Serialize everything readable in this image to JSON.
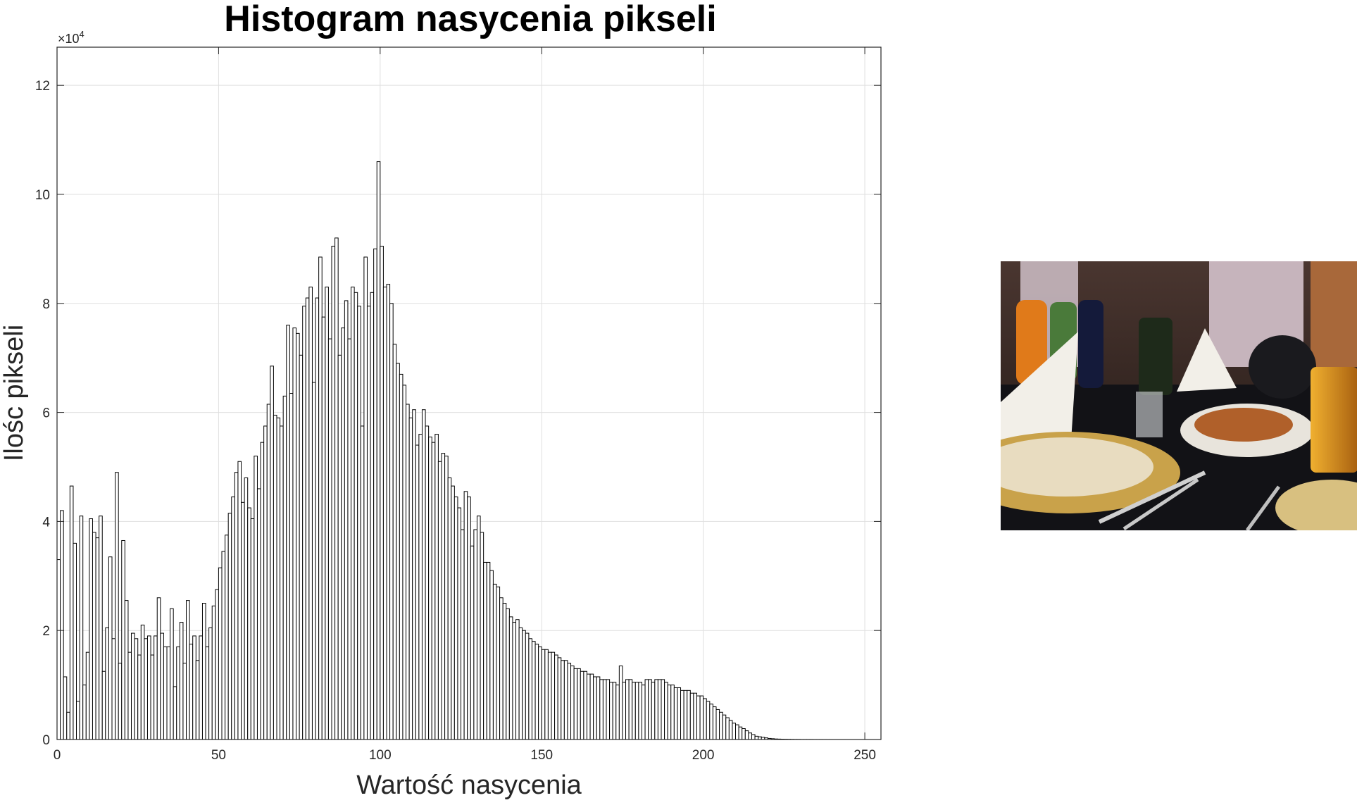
{
  "chart_data": {
    "type": "bar",
    "title": "Histogram nasycenia pikseli",
    "xlabel": "Wartość nasycenia",
    "ylabel": "Ilośc pikseli",
    "y_exponent_label": "×10",
    "y_exponent_power": "4",
    "xlim": [
      0,
      255
    ],
    "ylim": [
      0,
      12.7
    ],
    "y_unit_multiplier": 10000,
    "grid": true,
    "x_ticks": [
      0,
      50,
      100,
      150,
      200,
      250
    ],
    "y_ticks": [
      0,
      2,
      4,
      6,
      8,
      10,
      12
    ],
    "bar_fill": "#ffffff",
    "bar_edge": "#000000",
    "values": [
      3.3,
      4.2,
      1.15,
      0.5,
      4.65,
      3.6,
      0.7,
      4.1,
      1.0,
      1.6,
      4.05,
      3.8,
      3.7,
      4.1,
      1.25,
      2.05,
      3.35,
      1.85,
      4.9,
      1.4,
      3.65,
      2.55,
      1.6,
      1.95,
      1.85,
      1.55,
      2.1,
      1.85,
      1.9,
      1.55,
      1.9,
      2.6,
      1.95,
      1.7,
      1.7,
      2.4,
      0.97,
      1.7,
      2.15,
      1.4,
      2.55,
      1.75,
      1.9,
      1.45,
      1.9,
      2.5,
      1.7,
      2.05,
      2.45,
      2.75,
      3.15,
      3.45,
      3.75,
      4.15,
      4.45,
      4.9,
      5.1,
      4.35,
      4.8,
      4.25,
      4.05,
      5.2,
      4.6,
      5.45,
      5.75,
      6.15,
      6.85,
      5.95,
      5.9,
      5.75,
      6.3,
      7.6,
      6.35,
      7.55,
      7.45,
      7.05,
      7.95,
      8.1,
      8.3,
      6.55,
      8.1,
      8.85,
      7.75,
      8.3,
      7.35,
      9.05,
      9.2,
      7.05,
      7.55,
      8.05,
      7.35,
      8.3,
      8.2,
      7.95,
      5.75,
      8.85,
      7.95,
      8.2,
      9.0,
      10.6,
      9.05,
      8.3,
      8.35,
      8.0,
      7.25,
      6.9,
      6.7,
      6.5,
      6.15,
      5.9,
      6.05,
      5.4,
      5.6,
      6.05,
      5.75,
      5.55,
      5.45,
      5.6,
      5.1,
      5.25,
      5.2,
      4.8,
      4.65,
      4.45,
      4.25,
      3.85,
      4.55,
      4.45,
      3.55,
      3.85,
      4.1,
      3.8,
      3.25,
      3.25,
      3.1,
      2.85,
      2.8,
      2.6,
      2.5,
      2.4,
      2.25,
      2.15,
      2.2,
      2.05,
      2.0,
      1.95,
      1.85,
      1.8,
      1.75,
      1.7,
      1.65,
      1.65,
      1.6,
      1.6,
      1.55,
      1.5,
      1.45,
      1.45,
      1.4,
      1.35,
      1.3,
      1.3,
      1.25,
      1.25,
      1.2,
      1.2,
      1.15,
      1.15,
      1.1,
      1.1,
      1.1,
      1.05,
      1.05,
      1.0,
      1.35,
      1.05,
      1.1,
      1.1,
      1.05,
      1.05,
      1.05,
      1.0,
      1.1,
      1.1,
      1.05,
      1.1,
      1.1,
      1.1,
      1.05,
      1.0,
      1.0,
      0.95,
      0.95,
      0.9,
      0.9,
      0.9,
      0.85,
      0.85,
      0.8,
      0.8,
      0.75,
      0.7,
      0.65,
      0.6,
      0.55,
      0.5,
      0.45,
      0.4,
      0.35,
      0.3,
      0.27,
      0.23,
      0.2,
      0.16,
      0.12,
      0.09,
      0.06,
      0.05,
      0.04,
      0.03,
      0.02,
      0.015,
      0.01,
      0.008,
      0.006,
      0.005,
      0.004,
      0.003,
      0.002,
      0.002,
      0.001,
      0.001,
      0.001,
      0.001,
      0.0005,
      0.0005,
      0.0005,
      0.0003,
      0.0002,
      0.0002,
      0.0001,
      0.0001,
      0.0001,
      0.0001,
      0,
      0,
      0,
      0,
      0,
      0,
      0,
      0,
      0,
      0,
      0,
      0,
      0,
      0,
      0,
      0,
      0,
      0
    ]
  },
  "photo": {
    "scene": "restaurant-table-photo",
    "colors": {
      "wall": "#3a2a24",
      "curtain": "#c8b8c0",
      "tablecloth": "#121216",
      "plate": "#e8dcc0",
      "gold": "#c9a24a",
      "food": "#b0602a",
      "orange-bottle": "#e07a1a",
      "green-bottle": "#4a7a3a",
      "cola-bottle": "#141a3a",
      "napkin": "#f2efe8",
      "beer": "#d8901a"
    }
  }
}
